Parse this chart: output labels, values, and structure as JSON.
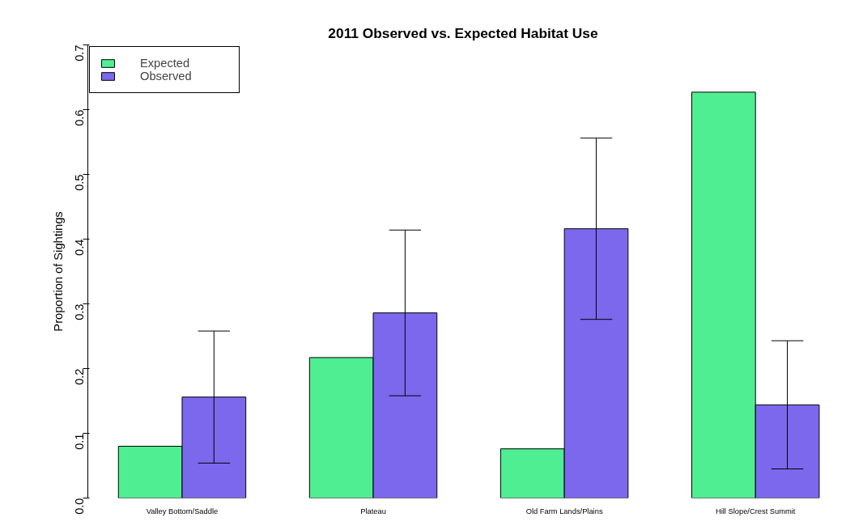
{
  "chart_data": {
    "type": "bar",
    "title": "2011 Observed vs. Expected Habitat Use",
    "ylabel": "Proportion of Sightings",
    "categories": [
      "Valley Bottom/Saddle",
      "Plateau",
      "Old Farm Lands/Plains",
      "Hill Slope/Crest Summit"
    ],
    "series": [
      {
        "name": "Expected",
        "color": "#50ee92",
        "values": [
          0.08,
          0.217,
          0.076,
          0.627
        ]
      },
      {
        "name": "Observed",
        "color": "#7b68ed",
        "values": [
          0.156,
          0.286,
          0.416,
          0.144
        ],
        "errors": [
          0.102,
          0.128,
          0.14,
          0.099
        ]
      }
    ],
    "ylim": [
      0,
      0.7
    ],
    "yticks": [
      {
        "value": 0,
        "label": "0.0"
      },
      0.1,
      0.2,
      0.3,
      0.4,
      0.5,
      0.6,
      0.7
    ],
    "grid": false,
    "legend": "top left"
  }
}
